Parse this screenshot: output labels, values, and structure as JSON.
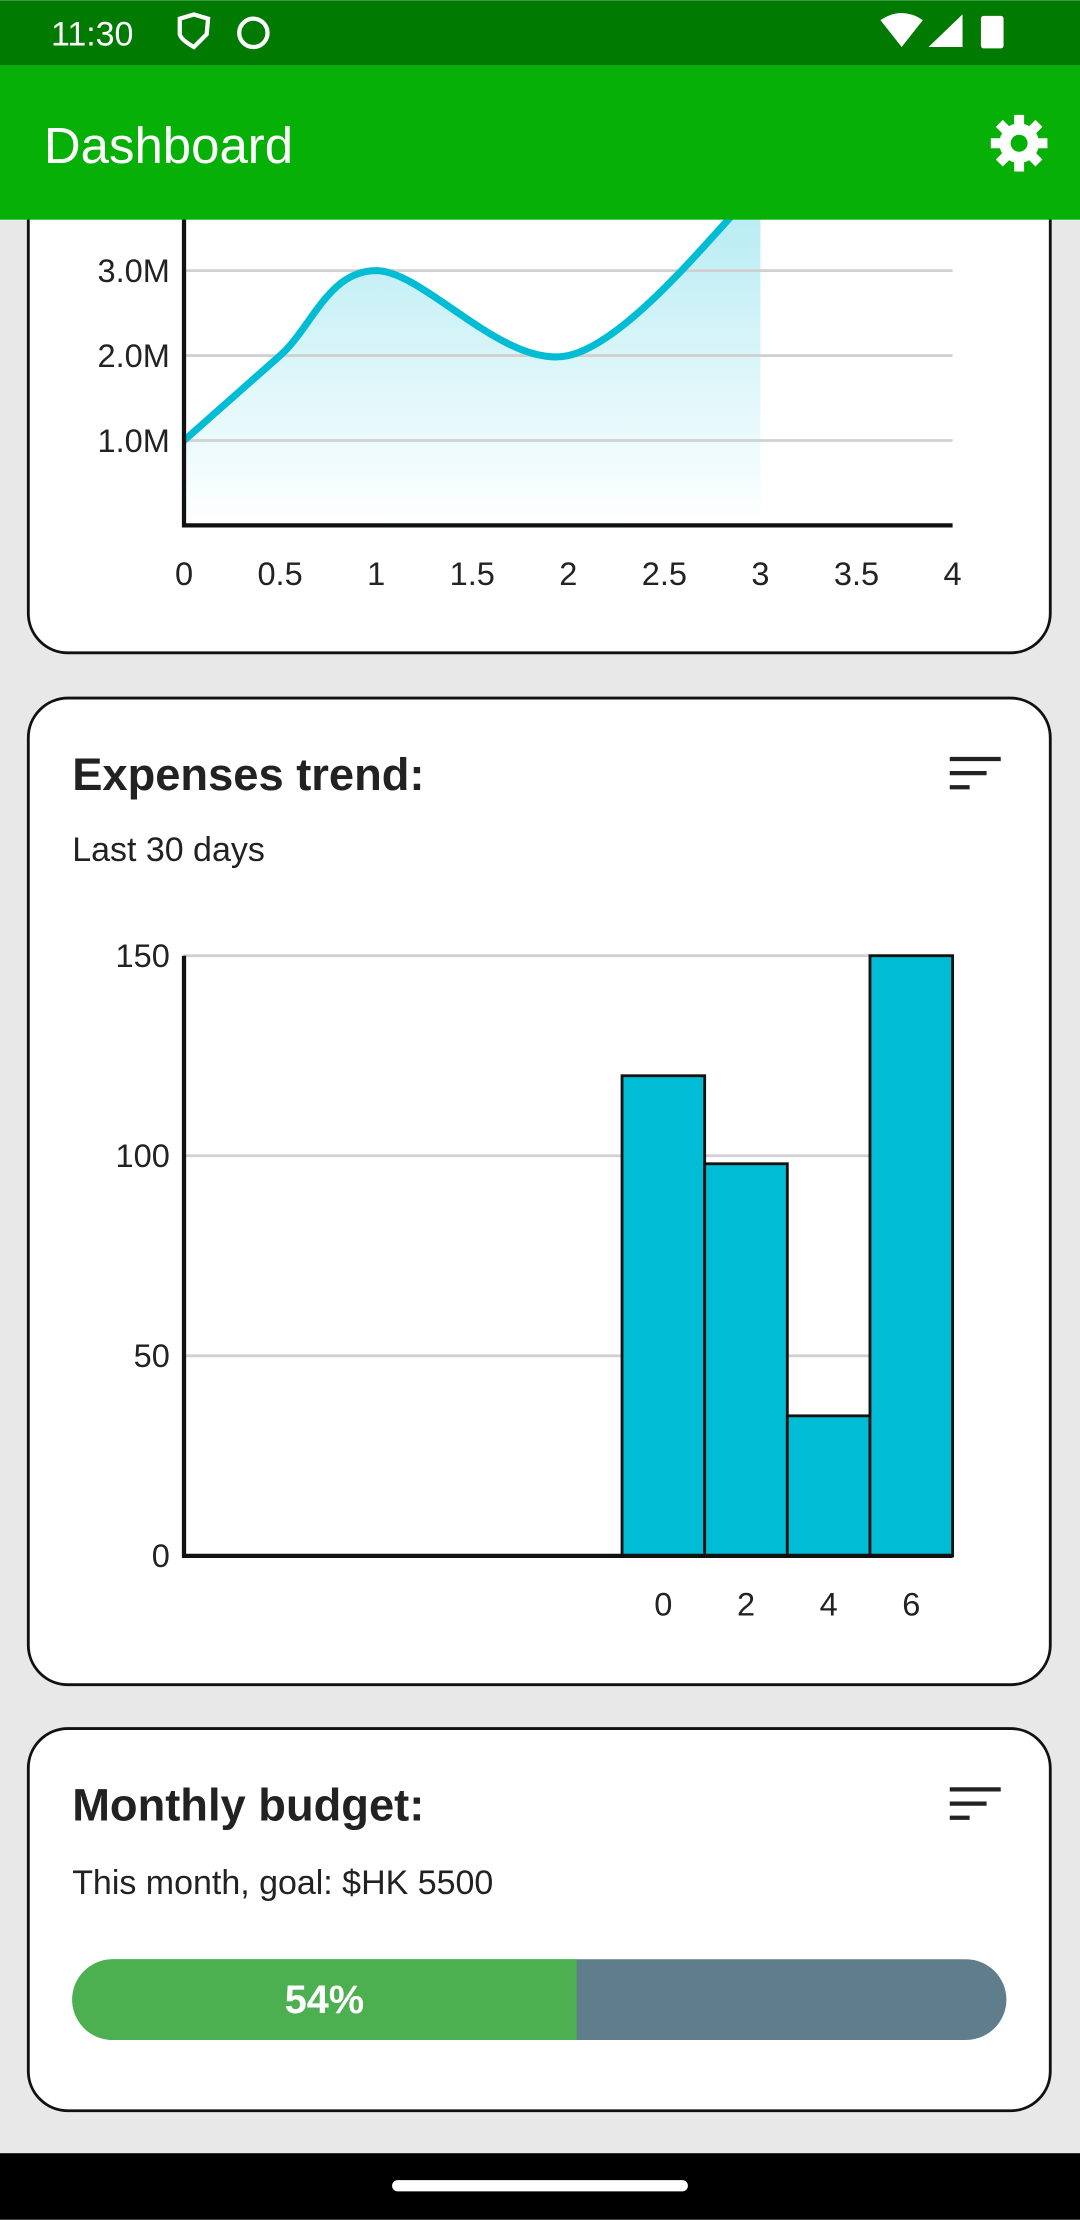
{
  "status_bar": {
    "time": "11:30"
  },
  "app_bar": {
    "title": "Dashboard"
  },
  "chart_data": [
    {
      "type": "line",
      "x": [
        0,
        0.5,
        1,
        2,
        3
      ],
      "values": [
        1000000,
        2000000,
        3000000,
        2000000,
        4000000
      ],
      "color": "#00bcd4",
      "xlim": [
        0,
        4
      ],
      "xticks": [
        0,
        0.5,
        1,
        1.5,
        2,
        2.5,
        3,
        3.5,
        4
      ],
      "ylim": [
        0,
        4000000
      ],
      "yticks": [
        {
          "value": 1000000,
          "label": "1.0M"
        },
        {
          "value": 2000000,
          "label": "2.0M"
        },
        {
          "value": 3000000,
          "label": "3.0M"
        }
      ],
      "grid": true
    },
    {
      "type": "bar",
      "title": "Expenses trend:",
      "subtitle": "Last 30 days",
      "x": [
        0,
        2,
        4,
        6
      ],
      "values": [
        120,
        98,
        35,
        150
      ],
      "color": "#00bcd4",
      "xlim": [
        -11.6,
        7
      ],
      "xticks": [
        0,
        2,
        4,
        6
      ],
      "ylim": [
        0,
        150
      ],
      "yticks": [
        0,
        50,
        100,
        150
      ],
      "grid": true
    }
  ],
  "budget": {
    "title": "Monthly budget:",
    "subtitle": "This month, goal: $HK 5500",
    "value": 54,
    "value_label": "54%"
  }
}
